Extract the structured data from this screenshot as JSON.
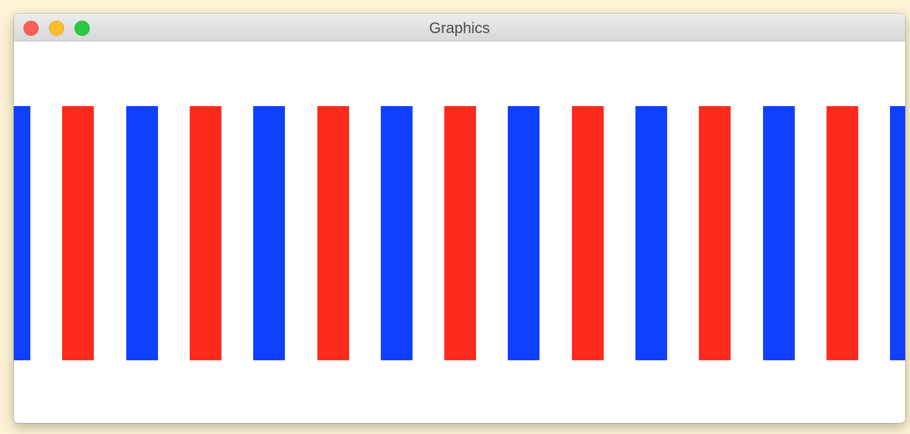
{
  "window": {
    "title": "Graphics"
  },
  "traffic_lights": {
    "close_color": "#ff5f57",
    "minimize_color": "#febc2e",
    "zoom_color": "#28c840"
  },
  "stripes": {
    "colors": [
      "blue",
      "red",
      "blue",
      "red",
      "blue",
      "red",
      "blue",
      "red",
      "blue",
      "red",
      "blue",
      "red",
      "blue",
      "red",
      "blue"
    ],
    "palette": {
      "blue": "#1040ff",
      "red": "#ff2a1e"
    }
  }
}
